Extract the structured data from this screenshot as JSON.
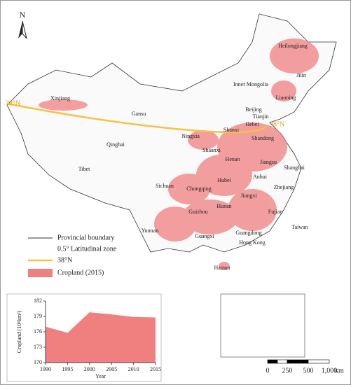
{
  "map": {
    "north": "N",
    "labels": [
      "Heilongjiang",
      "Jilin",
      "Liaoning",
      "Inner Mongolia",
      "Xinjiang",
      "Gansu",
      "Beijing",
      "Tianjin",
      "Hebei",
      "Shanxi",
      "Ningxia",
      "Shandong",
      "Qinghai",
      "Shaanxi",
      "Henan",
      "Jiangsu",
      "Shanghai",
      "Anhui",
      "Tibet",
      "Hubei",
      "Sichuan",
      "Chongqing",
      "Zhejiang",
      "Jiangxi",
      "Hunan",
      "Guizhou",
      "Fujian",
      "Yunnan",
      "Guangxi",
      "Guangdong",
      "Taiwan",
      "Hong Kong",
      "Hainan"
    ],
    "line_labels": [
      "38°N",
      "38°N"
    ]
  },
  "legend": [
    "Provincial boundary",
    "0.5° Latitudinal zone",
    "38°N",
    "Cropland (2015)"
  ],
  "scale_bar": {
    "labels": [
      "0",
      "250",
      "500",
      "1,000"
    ],
    "unit": "km"
  },
  "chart_data": {
    "type": "area",
    "x": [
      1990,
      1995,
      2000,
      2005,
      2010,
      2015
    ],
    "values": [
      177,
      175.8,
      179.8,
      179.4,
      178.9,
      178.8
    ],
    "color": "#f08080",
    "xlim": [
      1990,
      2015
    ],
    "ylim": [
      170,
      182
    ],
    "xticks": [
      1990,
      1995,
      2000,
      2005,
      2010,
      2015
    ],
    "yticks": [
      170,
      173,
      176,
      179,
      182
    ],
    "xlabel": "Year",
    "ylabel": "Cropland (10⁴km²)"
  }
}
